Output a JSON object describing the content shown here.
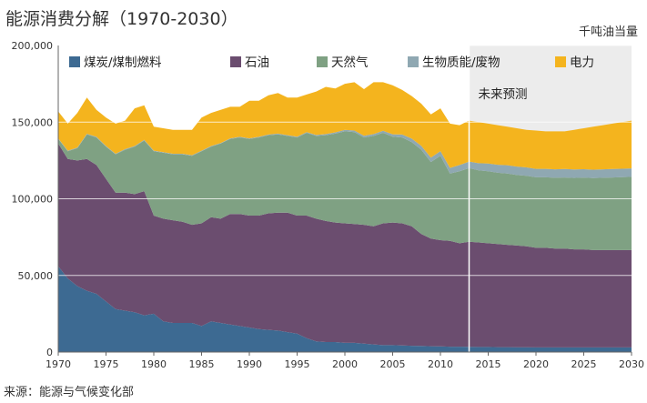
{
  "title": "能源消费分解（1970-2030）",
  "unit": "千吨油当量",
  "source": "来源：能源与气候变化部",
  "chart_data": {
    "type": "area",
    "stacked": true,
    "title": "能源消费分解（1970-2030）",
    "ylabel": "千吨油当量",
    "ylim": [
      0,
      200000
    ],
    "xlim": [
      1970,
      2030
    ],
    "yticks": [
      0,
      50000,
      100000,
      150000,
      200000
    ],
    "ytick_labels": [
      "0",
      "50,000",
      "100,000",
      "150,000",
      "200,000"
    ],
    "xticks": [
      1970,
      1975,
      1980,
      1985,
      1990,
      1995,
      2000,
      2005,
      2010,
      2015,
      2020,
      2025,
      2030
    ],
    "grid": true,
    "legend_position": "top",
    "annotation": {
      "text": "未来预测",
      "from_year": 2013
    },
    "x": [
      1970,
      1971,
      1972,
      1973,
      1974,
      1975,
      1976,
      1977,
      1978,
      1979,
      1980,
      1981,
      1982,
      1983,
      1984,
      1985,
      1986,
      1987,
      1988,
      1989,
      1990,
      1991,
      1992,
      1993,
      1994,
      1995,
      1996,
      1997,
      1998,
      1999,
      2000,
      2001,
      2002,
      2003,
      2004,
      2005,
      2006,
      2007,
      2008,
      2009,
      2010,
      2011,
      2012,
      2013,
      2014,
      2015,
      2016,
      2017,
      2018,
      2019,
      2020,
      2021,
      2022,
      2023,
      2024,
      2025,
      2026,
      2027,
      2028,
      2029,
      2030
    ],
    "series": [
      {
        "name": "煤炭/煤制燃料",
        "color": "#3d6a92",
        "values": [
          56000,
          48000,
          43000,
          40000,
          38000,
          33000,
          28000,
          27000,
          26000,
          24000,
          25000,
          20000,
          19000,
          19000,
          19000,
          17000,
          20000,
          19000,
          18000,
          17000,
          16000,
          15000,
          14500,
          14000,
          13000,
          12000,
          9000,
          7000,
          6500,
          6500,
          6000,
          6000,
          5500,
          5000,
          4500,
          4500,
          4300,
          4100,
          4000,
          3800,
          3700,
          3500,
          3500,
          3400,
          3300,
          3300,
          3200,
          3200,
          3100,
          3100,
          3000,
          3000,
          3000,
          3000,
          3000,
          3000,
          3000,
          3000,
          3000,
          3000,
          3000
        ]
      },
      {
        "name": "石油",
        "color": "#6b4d6f",
        "values": [
          80000,
          78000,
          82000,
          86000,
          84000,
          80000,
          76000,
          77000,
          77000,
          81000,
          64000,
          67000,
          67000,
          66000,
          64000,
          67000,
          68000,
          68000,
          72000,
          73000,
          73000,
          74000,
          76000,
          77000,
          78000,
          77000,
          80000,
          80000,
          79000,
          78000,
          78000,
          77500,
          77500,
          77000,
          79500,
          80000,
          79700,
          77900,
          73000,
          70200,
          69300,
          69000,
          67500,
          68600,
          68200,
          67700,
          67300,
          66800,
          66400,
          65900,
          65000,
          65000,
          64500,
          64500,
          64000,
          64000,
          63500,
          63500,
          63500,
          63500,
          63500
        ]
      },
      {
        "name": "天然气",
        "color": "#7fa183",
        "values": [
          3000,
          5000,
          8000,
          16000,
          18000,
          21000,
          25000,
          28000,
          31000,
          33000,
          42000,
          43000,
          43000,
          44000,
          45000,
          47000,
          46000,
          49000,
          49000,
          50000,
          50000,
          51000,
          51000,
          51000,
          50000,
          51000,
          54000,
          54000,
          56000,
          58000,
          60000,
          60000,
          57000,
          59000,
          59000,
          56000,
          56000,
          55000,
          55000,
          50000,
          55000,
          44000,
          47000,
          48000,
          47000,
          47000,
          46500,
          46500,
          46000,
          46000,
          46000,
          46000,
          46200,
          46400,
          46600,
          46800,
          47000,
          47200,
          47400,
          47600,
          47800
        ]
      },
      {
        "name": "生物质能/废物",
        "color": "#8fa8b2",
        "values": [
          400,
          400,
          400,
          400,
          400,
          400,
          400,
          400,
          400,
          400,
          400,
          400,
          400,
          400,
          400,
          400,
          400,
          400,
          400,
          400,
          400,
          400,
          400,
          500,
          500,
          500,
          500,
          600,
          700,
          800,
          900,
          1000,
          1100,
          1200,
          1400,
          1600,
          1900,
          2200,
          2500,
          2800,
          3100,
          3600,
          4000,
          4300,
          4700,
          5000,
          5200,
          5400,
          5500,
          5500,
          5500,
          5500,
          5500,
          5500,
          5500,
          5500,
          5500,
          5500,
          5500,
          5500,
          5500
        ]
      },
      {
        "name": "电力",
        "color": "#f4b41e",
        "values": [
          17600,
          17600,
          22600,
          23600,
          17600,
          18600,
          19600,
          18600,
          24600,
          22600,
          15600,
          15600,
          15600,
          15600,
          16600,
          21600,
          21600,
          21600,
          20600,
          19600,
          24600,
          23600,
          25600,
          26500,
          24500,
          25500,
          24500,
          28400,
          30800,
          28700,
          30100,
          31500,
          30400,
          33800,
          31600,
          31900,
          29100,
          27800,
          27500,
          28200,
          27900,
          28900,
          26000,
          26700,
          26800,
          26000,
          25800,
          25100,
          25000,
          24500,
          25000,
          24500,
          24800,
          24600,
          25900,
          26700,
          28000,
          28800,
          29600,
          30400,
          31200
        ]
      }
    ]
  }
}
